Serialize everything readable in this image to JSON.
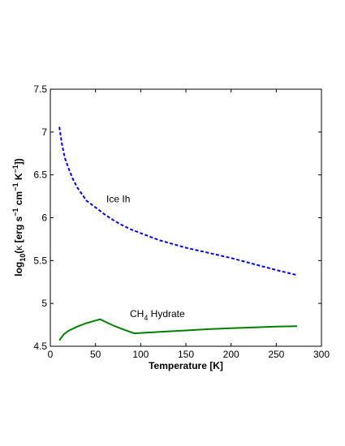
{
  "chart_data": {
    "type": "line",
    "xlabel": "Temperature [K]",
    "ylabel": {
      "log": "log",
      "log_sub": "10",
      "open": "(",
      "kappa": "κ",
      "units_a": " [erg s",
      "exp1": "−1",
      "units_b": " cm",
      "exp2": "−1",
      "units_c": " K",
      "exp3": "−1",
      "close": "])"
    },
    "xlim": [
      0,
      300
    ],
    "ylim": [
      4.5,
      7.5
    ],
    "xticks": [
      0,
      50,
      100,
      150,
      200,
      250,
      300
    ],
    "yticks": [
      4.5,
      5,
      5.5,
      6,
      6.5,
      7,
      7.5
    ],
    "xtick_labels": [
      "0",
      "50",
      "100",
      "150",
      "200",
      "250",
      "300"
    ],
    "ytick_labels": [
      "4.5",
      "5",
      "5.5",
      "6",
      "6.5",
      "7",
      "7.5"
    ],
    "grid": false,
    "series": [
      {
        "name": "Ice Ih",
        "color": "#0000ff",
        "style": "dashed",
        "x": [
          10,
          13,
          16,
          20,
          25,
          30,
          40,
          50,
          60,
          70,
          80,
          90,
          100,
          120,
          150,
          175,
          200,
          225,
          250,
          273
        ],
        "y": [
          7.06,
          6.85,
          6.7,
          6.58,
          6.45,
          6.35,
          6.2,
          6.12,
          6.04,
          5.97,
          5.91,
          5.86,
          5.82,
          5.74,
          5.65,
          5.59,
          5.53,
          5.46,
          5.39,
          5.33
        ]
      },
      {
        "name": "CH4 Hydrate",
        "color": "#007f00",
        "style": "solid",
        "x": [
          10,
          15,
          20,
          30,
          40,
          50,
          55,
          60,
          70,
          80,
          93,
          100,
          125,
          150,
          175,
          200,
          225,
          250,
          273
        ],
        "y": [
          4.57,
          4.64,
          4.68,
          4.73,
          4.77,
          4.8,
          4.815,
          4.79,
          4.74,
          4.7,
          4.65,
          4.655,
          4.67,
          4.685,
          4.7,
          4.71,
          4.72,
          4.73,
          4.735
        ]
      }
    ],
    "annotations": {
      "ice": "Ice Ih",
      "ch_main": "CH",
      "ch_sub": "4",
      "ch_rest": " Hydrate"
    },
    "annotation_anchor": [
      {
        "key": "ice",
        "x": 62,
        "y": 6.18
      },
      {
        "key": "ch",
        "x": 88,
        "y": 4.84
      }
    ]
  }
}
